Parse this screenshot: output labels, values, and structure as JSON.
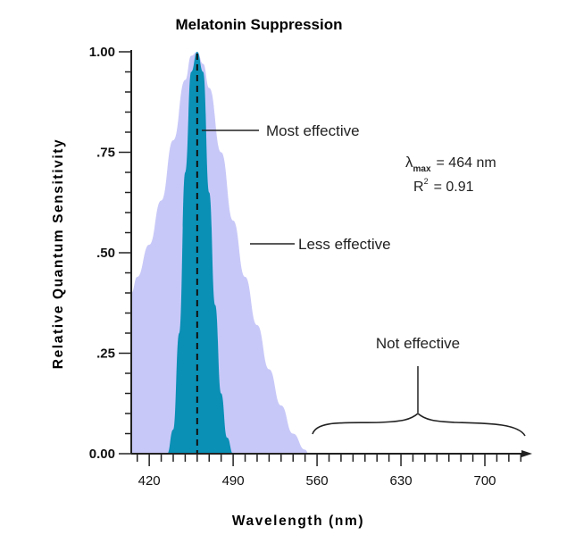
{
  "chart_data": {
    "type": "area",
    "title": "Melatonin Suppression",
    "xlabel": "Wavelength (nm)",
    "ylabel": "Relative Quantum Sensitivity",
    "x_ticks": [
      420,
      490,
      560,
      630,
      700
    ],
    "y_ticks": [
      {
        "value": 0.0,
        "label": "0.00"
      },
      {
        "value": 0.25,
        "label": ".25"
      },
      {
        "value": 0.5,
        "label": ".50"
      },
      {
        "value": 0.75,
        "label": ".75"
      },
      {
        "value": 1.0,
        "label": "1.00"
      }
    ],
    "xlim": [
      405,
      735
    ],
    "ylim": [
      0,
      1.0
    ],
    "grid": false,
    "colors": {
      "less_effective": "#c8c8f8",
      "most_effective": "#0a8fb5",
      "axis": "#222222"
    },
    "series": [
      {
        "name": "Less effective",
        "x": [
          405,
          410,
          420,
          430,
          440,
          450,
          455,
          460,
          465,
          470,
          480,
          490,
          500,
          510,
          520,
          530,
          540,
          550,
          553
        ],
        "y": [
          0.4,
          0.44,
          0.52,
          0.63,
          0.78,
          0.93,
          0.99,
          1.0,
          0.97,
          0.91,
          0.75,
          0.58,
          0.44,
          0.32,
          0.21,
          0.12,
          0.05,
          0.01,
          0.0
        ]
      },
      {
        "name": "Most effective",
        "x": [
          435,
          440,
          445,
          450,
          455,
          460,
          465,
          470,
          475,
          480,
          485,
          490
        ],
        "y": [
          0.0,
          0.06,
          0.3,
          0.7,
          0.95,
          1.0,
          0.95,
          0.65,
          0.37,
          0.15,
          0.04,
          0.0
        ]
      }
    ],
    "peak": {
      "x": 460
    },
    "annotations": {
      "most": "Most effective",
      "less": "Less effective",
      "not": "Not effective",
      "lambda_symbol": "λ",
      "lambda_sub": "max",
      "lambda_value": "= 464 nm",
      "r2_letter": "R",
      "r2_sup": "2",
      "r2_value": "= 0.91"
    }
  }
}
